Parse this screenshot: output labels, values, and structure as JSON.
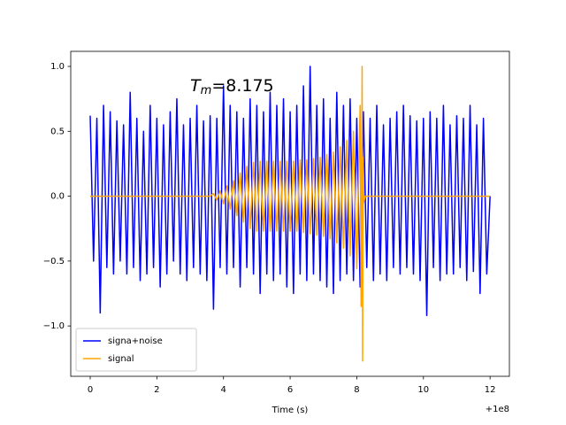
{
  "chart_data": {
    "type": "line",
    "xlabel": "Time (s)",
    "x_offset_label": "+1e8",
    "annotation": {
      "symbol": "T",
      "subscript": "m",
      "text": "=8.175",
      "x": 3.0,
      "y": 0.85
    },
    "legend": "lower left",
    "xlim": [
      -0.584,
      12.58
    ],
    "ylim": [
      -1.388,
      1.116
    ],
    "xticks": [
      0,
      2,
      4,
      6,
      8,
      10,
      12
    ],
    "yticks": [
      {
        "value": -1.0,
        "label": "−1.0"
      },
      {
        "value": -0.5,
        "label": "−0.5"
      },
      {
        "value": 0.0,
        "label": "0.0"
      },
      0.5,
      {
        "value": 1.0,
        "label": "1.0"
      }
    ],
    "series": [
      {
        "name": "signa+noise",
        "color": "#0000ff",
        "x": [
          0,
          0.1,
          0.2,
          0.3,
          0.4,
          0.5,
          0.6,
          0.7,
          0.8,
          0.9,
          1.0,
          1.1,
          1.2,
          1.3,
          1.4,
          1.5,
          1.6,
          1.7,
          1.8,
          1.9,
          2.0,
          2.1,
          2.2,
          2.3,
          2.4,
          2.5,
          2.6,
          2.7,
          2.8,
          2.9,
          3.0,
          3.1,
          3.2,
          3.3,
          3.4,
          3.5,
          3.6,
          3.7,
          3.8,
          3.9,
          4.0,
          4.1,
          4.2,
          4.3,
          4.4,
          4.5,
          4.6,
          4.7,
          4.8,
          4.9,
          5.0,
          5.1,
          5.2,
          5.3,
          5.4,
          5.5,
          5.6,
          5.7,
          5.8,
          5.9,
          6.0,
          6.1,
          6.2,
          6.3,
          6.4,
          6.5,
          6.6,
          6.7,
          6.8,
          6.9,
          7.0,
          7.1,
          7.2,
          7.3,
          7.4,
          7.5,
          7.6,
          7.7,
          7.8,
          7.9,
          8.0,
          8.1,
          8.2,
          8.3,
          8.4,
          8.5,
          8.6,
          8.7,
          8.8,
          8.9,
          9.0,
          9.1,
          9.2,
          9.3,
          9.4,
          9.5,
          9.6,
          9.7,
          9.8,
          9.9,
          10.0,
          10.1,
          10.2,
          10.3,
          10.4,
          10.5,
          10.6,
          10.7,
          10.8,
          10.9,
          11.0,
          11.1,
          11.2,
          11.3,
          11.4,
          11.5,
          11.6,
          11.7,
          11.8,
          11.9,
          12.0
        ],
        "values": [
          0.62,
          -0.5,
          0.6,
          -0.9,
          0.7,
          -0.55,
          0.65,
          -0.6,
          0.58,
          -0.5,
          0.55,
          -0.6,
          0.8,
          -0.55,
          0.6,
          -0.65,
          0.5,
          -0.6,
          0.7,
          -0.55,
          0.6,
          -0.7,
          0.55,
          -0.6,
          0.65,
          -0.5,
          0.75,
          -0.6,
          0.55,
          -0.65,
          0.6,
          -0.55,
          0.7,
          -0.6,
          0.58,
          -0.65,
          0.62,
          -0.87,
          0.6,
          -0.55,
          0.85,
          -0.6,
          0.7,
          -0.55,
          0.65,
          -0.7,
          0.6,
          -0.55,
          0.75,
          -0.6,
          0.7,
          -0.75,
          0.65,
          -0.6,
          0.8,
          -0.65,
          0.7,
          -0.6,
          0.75,
          -0.7,
          0.65,
          -0.75,
          0.7,
          -0.6,
          0.85,
          -0.65,
          1.0,
          -0.6,
          0.7,
          -0.65,
          0.75,
          -0.7,
          0.6,
          -0.75,
          0.8,
          -0.65,
          0.7,
          -0.6,
          0.75,
          -0.65,
          0.6,
          -0.7,
          0.65,
          -0.55,
          0.6,
          -0.65,
          0.7,
          -0.6,
          0.55,
          -0.65,
          0.6,
          -0.55,
          0.65,
          -0.6,
          0.7,
          -0.55,
          0.62,
          -0.6,
          0.58,
          -0.65,
          0.6,
          -0.92,
          0.65,
          -0.55,
          0.6,
          -0.65,
          0.7,
          -0.6,
          0.55,
          -0.6,
          0.62,
          -0.55,
          0.6,
          -0.65,
          0.7,
          -0.58,
          0.55,
          -0.75,
          0.6,
          -0.6,
          0.0
        ]
      },
      {
        "name": "signal",
        "color": "#ffa500",
        "x": [
          0,
          3.6,
          3.7,
          3.8,
          3.9,
          4.0,
          4.1,
          4.2,
          4.3,
          4.4,
          4.5,
          4.6,
          4.7,
          4.8,
          4.9,
          5.0,
          5.1,
          5.2,
          5.3,
          5.4,
          5.5,
          5.6,
          5.7,
          5.8,
          5.9,
          6.0,
          6.1,
          6.2,
          6.3,
          6.4,
          6.5,
          6.6,
          6.7,
          6.8,
          6.9,
          7.0,
          7.1,
          7.2,
          7.3,
          7.4,
          7.5,
          7.6,
          7.7,
          7.8,
          7.9,
          8.0,
          8.1,
          8.13,
          8.16,
          8.175,
          8.19,
          8.21,
          8.25,
          12.0
        ],
        "values": [
          0.0,
          0.0,
          0.02,
          -0.03,
          0.04,
          -0.06,
          0.08,
          -0.1,
          0.12,
          -0.15,
          0.18,
          -0.2,
          0.23,
          -0.25,
          0.26,
          -0.27,
          0.27,
          -0.27,
          0.27,
          -0.27,
          0.27,
          -0.27,
          0.27,
          -0.27,
          0.27,
          -0.27,
          0.27,
          -0.27,
          0.28,
          -0.28,
          0.28,
          -0.29,
          0.29,
          -0.3,
          0.3,
          -0.31,
          0.32,
          -0.33,
          0.34,
          -0.36,
          0.38,
          -0.4,
          0.43,
          -0.46,
          0.5,
          -0.56,
          0.7,
          -0.85,
          1.0,
          -1.27,
          0.3,
          -0.05,
          0.0,
          0.0
        ]
      }
    ]
  }
}
